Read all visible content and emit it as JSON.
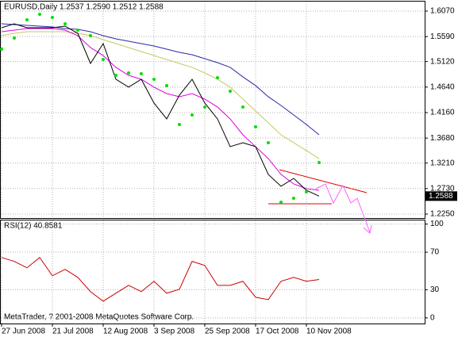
{
  "chart_data": [
    {
      "type": "line",
      "title": "EURUSD,Daily  1.2537 1.2590 1.2512 1.2588",
      "footer": "MetaTrader, ? 2001-2008 MetaQuotes Software Corp.",
      "last_price": 1.2588,
      "categories": [
        "27 Jun 2008",
        null,
        null,
        null,
        "21 Jul 2008",
        null,
        null,
        null,
        "12 Aug 2008",
        null,
        null,
        null,
        "3 Sep 2008",
        null,
        null,
        null,
        "25 Sep 2008",
        null,
        null,
        null,
        "17 Oct 2008",
        null,
        null,
        null,
        "10 Nov 2008",
        null
      ],
      "ylim": [
        1.2175,
        1.6249
      ],
      "yticks": [
        {
          "value": 1.607,
          "label": "1.6070"
        },
        {
          "value": 1.559,
          "label": "1.5590"
        },
        {
          "value": 1.512,
          "label": "1.5120"
        },
        {
          "value": 1.464,
          "label": "1.4640"
        },
        {
          "value": 1.416,
          "label": "1.4160"
        },
        {
          "value": 1.368,
          "label": "1.3680"
        },
        {
          "value": 1.321,
          "label": "1.3210"
        },
        {
          "value": 1.273,
          "label": "1.2730"
        },
        {
          "value": 1.225,
          "label": "1.2250"
        }
      ],
      "grid": true,
      "series": [
        {
          "color": "#c8c860",
          "style": "line",
          "values": [
            1.5607,
            1.5652,
            1.5682,
            1.5682,
            1.5682,
            1.5682,
            1.5652,
            1.5607,
            1.5533,
            1.5458,
            1.5384,
            1.5309,
            1.5234,
            1.516,
            1.5085,
            1.5011,
            1.4906,
            1.4787,
            1.4638,
            1.4414,
            1.419,
            1.3966,
            1.3742,
            1.3593,
            1.3444,
            1.3295
          ]
        },
        {
          "color": "#2a2aa8",
          "style": "line",
          "values": [
            1.5831,
            1.5816,
            1.5801,
            1.5787,
            1.5772,
            1.5742,
            1.5727,
            1.5682,
            1.5607,
            1.5548,
            1.5503,
            1.5458,
            1.5414,
            1.5354,
            1.5294,
            1.5249,
            1.5175,
            1.51,
            1.5011,
            1.4832,
            1.4668,
            1.4459,
            1.4294,
            1.4115,
            1.3936,
            1.3742
          ]
        },
        {
          "color": "#e000e0",
          "style": "line",
          "values": [
            1.5682,
            1.5712,
            1.5742,
            1.5742,
            1.5742,
            1.5712,
            1.5607,
            1.5384,
            1.5234,
            1.5011,
            1.4861,
            1.4787,
            1.4638,
            1.4518,
            1.4459,
            1.4518,
            1.4414,
            1.4265,
            1.4041,
            1.3742,
            1.3519,
            1.3295,
            1.2997,
            1.2817,
            1.2728,
            1.2698
          ]
        },
        {
          "color": "#000000",
          "style": "line",
          "values": [
            1.5757,
            1.5831,
            1.5757,
            1.5757,
            1.5757,
            1.5787,
            1.5652,
            1.5085,
            1.5458,
            1.4787,
            1.4638,
            1.4787,
            1.4339,
            1.4041,
            1.4488,
            1.4787,
            1.4339,
            1.4041,
            1.3519,
            1.3593,
            1.3519,
            1.2996,
            1.2773,
            1.2922,
            1.2698,
            1.2588
          ]
        },
        {
          "color": "#00dd00",
          "style": "dots",
          "values": [
            1.5354,
            1.5563,
            1.5906,
            1.601,
            1.5951,
            1.5831,
            1.5712,
            1.5607,
            1.516,
            1.4861,
            1.4906,
            1.4891,
            1.4787,
            1.4668,
            1.3936,
            1.4115,
            1.4265,
            1.4817,
            1.4563,
            1.4265,
            1.3892,
            1.3593,
            1.2474,
            1.2549,
            1.2668,
            1.322
          ]
        }
      ]
    },
    {
      "type": "line",
      "title": "RSI(12) 40.8581",
      "ylim": [
        -6,
        103
      ],
      "yticks": [
        100,
        70,
        30,
        0
      ],
      "grid": true,
      "series": [
        {
          "color": "#cc0000",
          "style": "line",
          "values": [
            64.4,
            60.2,
            53.4,
            64.4,
            44.9,
            51.7,
            43.2,
            28.0,
            17.8,
            26.3,
            34.7,
            28.0,
            39.0,
            26.3,
            30.5,
            60.2,
            55.9,
            34.7,
            34.7,
            39.0,
            22.0,
            19.5,
            39.0,
            43.2,
            39.0,
            40.86
          ]
        }
      ]
    }
  ]
}
